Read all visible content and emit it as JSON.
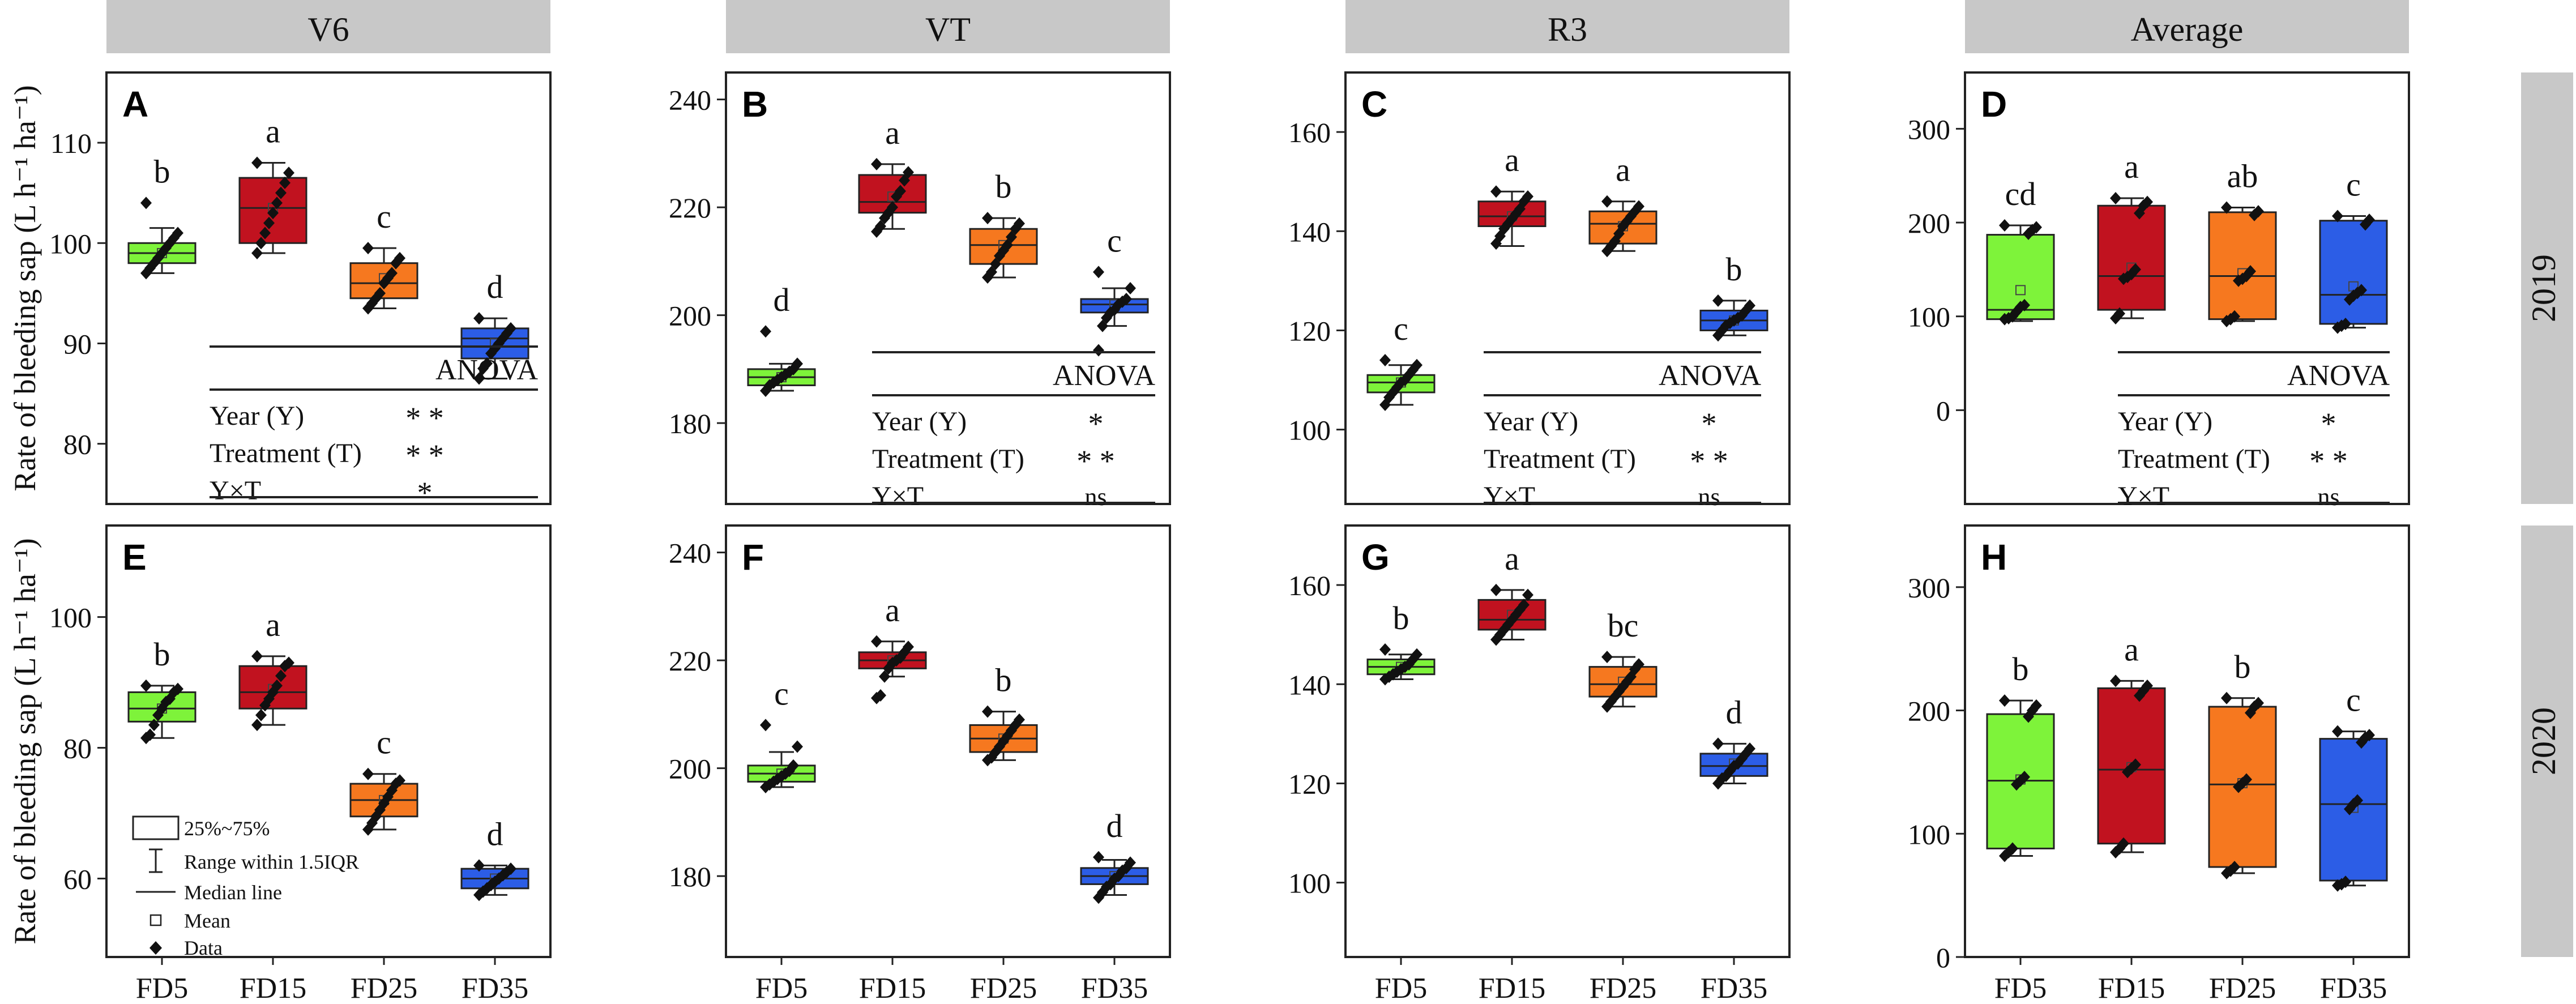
{
  "figure": {
    "y_axis_label": "Rate of bleeding sap (L h⁻¹ ha⁻¹)",
    "column_headers": [
      "V6",
      "VT",
      "R3",
      "Average"
    ],
    "row_labels": [
      "2019",
      "2020"
    ],
    "categories": [
      "FD5",
      "FD15",
      "FD25",
      "FD35"
    ],
    "colors": {
      "FD5": "#7ef33a",
      "FD15": "#c1121f",
      "FD25": "#f6781f",
      "FD35": "#2c5de6",
      "header_bg": "#c8c8c8",
      "axes": "#222222"
    }
  },
  "legend": {
    "items": [
      {
        "icon": "box-icon",
        "label": "25%~75%"
      },
      {
        "icon": "whisker-icon",
        "label": "Range within 1.5IQR"
      },
      {
        "icon": "line-icon",
        "label": "Median line"
      },
      {
        "icon": "square-icon",
        "label": "Mean"
      },
      {
        "icon": "diamond-icon",
        "label": "Data"
      }
    ]
  },
  "anova": {
    "title": "ANOVA",
    "V6": [
      {
        "term": "Year (Y)",
        "sig": "* *"
      },
      {
        "term": "Treatment (T)",
        "sig": "* *"
      },
      {
        "term": "Y×T",
        "sig": "*"
      }
    ],
    "VT": [
      {
        "term": "Year (Y)",
        "sig": "*"
      },
      {
        "term": "Treatment (T)",
        "sig": "* *"
      },
      {
        "term": "Y×T",
        "sig": "ns"
      }
    ],
    "R3": [
      {
        "term": "Year (Y)",
        "sig": "*"
      },
      {
        "term": "Treatment (T)",
        "sig": "* *"
      },
      {
        "term": "Y×T",
        "sig": "ns"
      }
    ],
    "Average": [
      {
        "term": "Year (Y)",
        "sig": "*"
      },
      {
        "term": "Treatment (T)",
        "sig": "* *"
      },
      {
        "term": "Y×T",
        "sig": "ns"
      }
    ]
  },
  "chart_data": [
    {
      "type": "box",
      "panel": "A",
      "stage": "V6",
      "year": "2019",
      "categories": [
        "FD5",
        "FD15",
        "FD25",
        "FD35"
      ],
      "ylim": [
        74,
        117
      ],
      "ticks": [
        80,
        90,
        100,
        110
      ],
      "boxes": [
        {
          "q1": 98,
          "median": 99,
          "q3": 100,
          "lo": 97,
          "hi": 101.5,
          "mean": 99,
          "letter": "b",
          "points": [
            97,
            97.5,
            98,
            98.5,
            99,
            99.5,
            100,
            100.5,
            101,
            104
          ]
        },
        {
          "q1": 100,
          "median": 103.5,
          "q3": 106.5,
          "lo": 99,
          "hi": 108,
          "mean": 103.5,
          "letter": "a",
          "points": [
            99,
            100,
            101,
            102,
            103,
            104,
            105,
            106,
            107,
            108
          ]
        },
        {
          "q1": 94.5,
          "median": 96,
          "q3": 98,
          "lo": 93.5,
          "hi": 99.5,
          "mean": 96.5,
          "letter": "c",
          "points": [
            93.5,
            94,
            94.5,
            95,
            96,
            96.5,
            97,
            98,
            98.5,
            99.5
          ]
        },
        {
          "q1": 88.5,
          "median": 90.5,
          "q3": 91.5,
          "lo": 86.5,
          "hi": 92.5,
          "mean": 90,
          "letter": "d",
          "points": [
            86.5,
            87.5,
            88,
            89,
            89.5,
            90,
            90.5,
            91,
            91.5,
            92.5
          ]
        }
      ]
    },
    {
      "type": "box",
      "panel": "B",
      "stage": "VT",
      "year": "2019",
      "categories": [
        "FD5",
        "FD15",
        "FD25",
        "FD35"
      ],
      "ylim": [
        165,
        245
      ],
      "ticks": [
        180,
        200,
        220,
        240
      ],
      "boxes": [
        {
          "q1": 187,
          "median": 188.5,
          "q3": 190,
          "lo": 186,
          "hi": 191,
          "mean": 188.5,
          "letter": "d",
          "points": [
            186,
            187,
            187.5,
            188,
            188.5,
            189,
            189.5,
            190,
            191,
            197
          ]
        },
        {
          "q1": 219,
          "median": 221,
          "q3": 226,
          "lo": 216,
          "hi": 228,
          "mean": 222,
          "letter": "a",
          "points": [
            215.5,
            216.5,
            218,
            219,
            220,
            222,
            223,
            225,
            226.5,
            228
          ]
        },
        {
          "q1": 209.5,
          "median": 213,
          "q3": 216,
          "lo": 207,
          "hi": 218,
          "mean": 213,
          "letter": "b",
          "points": [
            207,
            208,
            209.5,
            211,
            212,
            213,
            214.5,
            216,
            217,
            218
          ]
        },
        {
          "q1": 200.5,
          "median": 202,
          "q3": 203,
          "lo": 198,
          "hi": 205,
          "mean": 202,
          "letter": "c",
          "points": [
            193.5,
            198,
            199.5,
            200.5,
            201,
            202,
            202.5,
            203,
            205,
            208
          ]
        }
      ]
    },
    {
      "type": "box",
      "panel": "C",
      "stage": "R3",
      "year": "2019",
      "categories": [
        "FD5",
        "FD15",
        "FD25",
        "FD35"
      ],
      "ylim": [
        85,
        172
      ],
      "ticks": [
        100,
        120,
        140,
        160
      ],
      "boxes": [
        {
          "q1": 107.5,
          "median": 109.5,
          "q3": 111,
          "lo": 105,
          "hi": 113,
          "mean": 109.5,
          "letter": "c",
          "points": [
            105,
            106.5,
            107.5,
            108.5,
            109.5,
            110,
            111,
            112,
            113,
            114
          ]
        },
        {
          "q1": 141,
          "median": 143,
          "q3": 146,
          "lo": 137,
          "hi": 148,
          "mean": 143,
          "letter": "a",
          "points": [
            137.5,
            139,
            140.5,
            141.5,
            142.5,
            143.5,
            144.5,
            146,
            147,
            148
          ]
        },
        {
          "q1": 137.5,
          "median": 141.5,
          "q3": 144,
          "lo": 136,
          "hi": 146,
          "mean": 141,
          "letter": "a",
          "points": [
            136,
            137,
            138,
            139.5,
            141,
            142,
            143,
            144,
            145,
            146
          ]
        },
        {
          "q1": 120,
          "median": 122,
          "q3": 124,
          "lo": 119,
          "hi": 126,
          "mean": 122,
          "letter": "b",
          "points": [
            119,
            120,
            121,
            121.5,
            122,
            122.5,
            123,
            124,
            125,
            126
          ]
        }
      ]
    },
    {
      "type": "box",
      "panel": "D",
      "stage": "Average",
      "year": "2019",
      "categories": [
        "FD5",
        "FD15",
        "FD25",
        "FD35"
      ],
      "ylim": [
        -100,
        360
      ],
      "ticks": [
        0,
        100,
        200,
        300
      ],
      "boxes": [
        {
          "q1": 97,
          "median": 107,
          "q3": 187,
          "lo": 95,
          "hi": 197,
          "mean": 128,
          "letter": "cd",
          "points": [
            97,
            98,
            100,
            105,
            110,
            112,
            188,
            192,
            195,
            197
          ]
        },
        {
          "q1": 107,
          "median": 143,
          "q3": 218,
          "lo": 98,
          "hi": 226,
          "mean": 152,
          "letter": "a",
          "points": [
            98,
            103,
            140,
            142,
            145,
            150,
            210,
            218,
            222,
            226
          ]
        },
        {
          "q1": 97,
          "median": 143,
          "q3": 211,
          "lo": 95,
          "hi": 216,
          "mean": 146,
          "letter": "ab",
          "points": [
            95,
            97,
            100,
            138,
            140,
            143,
            148,
            208,
            212,
            216
          ]
        },
        {
          "q1": 92,
          "median": 123,
          "q3": 202,
          "lo": 88,
          "hi": 207,
          "mean": 132,
          "letter": "c",
          "points": [
            88,
            90,
            92,
            118,
            122,
            125,
            128,
            198,
            203,
            207
          ]
        }
      ]
    },
    {
      "type": "box",
      "panel": "E",
      "stage": "V6",
      "year": "2020",
      "categories": [
        "FD5",
        "FD15",
        "FD25",
        "FD35"
      ],
      "ylim": [
        48,
        114
      ],
      "ticks": [
        60,
        80,
        100
      ],
      "boxes": [
        {
          "q1": 84,
          "median": 86,
          "q3": 88.5,
          "lo": 81.5,
          "hi": 89.5,
          "mean": 86,
          "letter": "b",
          "points": [
            81.5,
            82,
            83.5,
            85,
            86,
            87,
            87.5,
            88.5,
            89,
            89.5
          ]
        },
        {
          "q1": 86,
          "median": 88.5,
          "q3": 92.5,
          "lo": 83.5,
          "hi": 94,
          "mean": 89,
          "letter": "a",
          "points": [
            83.5,
            85,
            86.5,
            87.5,
            88.5,
            89.5,
            91,
            92.5,
            93,
            94
          ]
        },
        {
          "q1": 69.5,
          "median": 72,
          "q3": 74.5,
          "lo": 67.5,
          "hi": 76,
          "mean": 72,
          "letter": "c",
          "points": [
            67.5,
            68.5,
            69.5,
            70.5,
            71.5,
            72.5,
            73.5,
            74.5,
            75,
            76
          ]
        },
        {
          "q1": 58.5,
          "median": 60,
          "q3": 61.5,
          "lo": 57.5,
          "hi": 62,
          "mean": 60,
          "letter": "d",
          "points": [
            57.5,
            58,
            58.5,
            59,
            59.5,
            60,
            60.5,
            61,
            61.5,
            62
          ]
        }
      ]
    },
    {
      "type": "box",
      "panel": "F",
      "stage": "VT",
      "year": "2020",
      "categories": [
        "FD5",
        "FD15",
        "FD25",
        "FD35"
      ],
      "ylim": [
        165,
        245
      ],
      "ticks": [
        180,
        200,
        220,
        240
      ],
      "boxes": [
        {
          "q1": 197.5,
          "median": 199,
          "q3": 200.5,
          "lo": 196.5,
          "hi": 203,
          "mean": 199,
          "letter": "c",
          "points": [
            196.5,
            197,
            197.5,
            198,
            198.5,
            199,
            199.5,
            200.5,
            204,
            208
          ]
        },
        {
          "q1": 218.5,
          "median": 220,
          "q3": 221.5,
          "lo": 217,
          "hi": 223.5,
          "mean": 220,
          "letter": "a",
          "points": [
            213,
            213.5,
            217,
            218.5,
            219.5,
            220,
            220.5,
            221.5,
            222.5,
            223.5
          ]
        },
        {
          "q1": 203,
          "median": 205.5,
          "q3": 208,
          "lo": 201.5,
          "hi": 210.5,
          "mean": 205.5,
          "letter": "b",
          "points": [
            201.5,
            202,
            203,
            204,
            205,
            206,
            207,
            208,
            209,
            210.5
          ]
        },
        {
          "q1": 178.5,
          "median": 180,
          "q3": 181.5,
          "lo": 176.5,
          "hi": 183,
          "mean": 180,
          "letter": "d",
          "points": [
            176,
            177,
            178,
            178.5,
            179.5,
            180,
            181,
            181.5,
            182.5,
            183.5
          ]
        }
      ]
    },
    {
      "type": "box",
      "panel": "G",
      "stage": "R3",
      "year": "2020",
      "categories": [
        "FD5",
        "FD15",
        "FD25",
        "FD35"
      ],
      "ylim": [
        85,
        172
      ],
      "ticks": [
        100,
        120,
        140,
        160
      ],
      "boxes": [
        {
          "q1": 142,
          "median": 143.5,
          "q3": 145,
          "lo": 141,
          "hi": 146,
          "mean": 143.5,
          "letter": "b",
          "points": [
            141,
            141.5,
            142,
            142.5,
            143,
            143.5,
            144,
            145,
            146,
            147
          ]
        },
        {
          "q1": 151,
          "median": 153,
          "q3": 157,
          "lo": 149,
          "hi": 159,
          "mean": 154,
          "letter": "a",
          "points": [
            149,
            150,
            151,
            152,
            153,
            154,
            155,
            156,
            158,
            159
          ]
        },
        {
          "q1": 137.5,
          "median": 140,
          "q3": 143.5,
          "lo": 135.5,
          "hi": 145.5,
          "mean": 140.5,
          "letter": "bc",
          "points": [
            135.5,
            136.5,
            137.5,
            138.5,
            139.5,
            140.5,
            141.5,
            143,
            144,
            145.5
          ]
        },
        {
          "q1": 121.5,
          "median": 123.5,
          "q3": 126,
          "lo": 120,
          "hi": 128,
          "mean": 124,
          "letter": "d",
          "points": [
            120,
            121,
            121.5,
            122.5,
            123.5,
            124,
            125,
            126,
            127,
            128
          ]
        }
      ]
    },
    {
      "type": "box",
      "panel": "H",
      "stage": "Average",
      "year": "2020",
      "categories": [
        "FD5",
        "FD15",
        "FD25",
        "FD35"
      ],
      "ylim": [
        0,
        350
      ],
      "ticks": [
        0,
        100,
        200,
        300
      ],
      "boxes": [
        {
          "q1": 88,
          "median": 143,
          "q3": 197,
          "lo": 82,
          "hi": 208,
          "mean": 144,
          "letter": "b",
          "points": [
            82,
            85,
            88,
            140,
            143,
            146,
            195,
            200,
            204,
            208
          ]
        },
        {
          "q1": 92,
          "median": 152,
          "q3": 218,
          "lo": 85,
          "hi": 224,
          "mean": 154,
          "letter": "a",
          "points": [
            85,
            88,
            92,
            150,
            153,
            156,
            212,
            216,
            220,
            224
          ]
        },
        {
          "q1": 73,
          "median": 140,
          "q3": 203,
          "lo": 68,
          "hi": 210,
          "mean": 141,
          "letter": "b",
          "points": [
            68,
            70,
            73,
            138,
            141,
            144,
            198,
            203,
            206,
            210
          ]
        },
        {
          "q1": 62,
          "median": 124,
          "q3": 177,
          "lo": 58,
          "hi": 183,
          "mean": 121,
          "letter": "c",
          "points": [
            58,
            59,
            61,
            120,
            124,
            127,
            174,
            178,
            180,
            183
          ]
        }
      ]
    }
  ]
}
